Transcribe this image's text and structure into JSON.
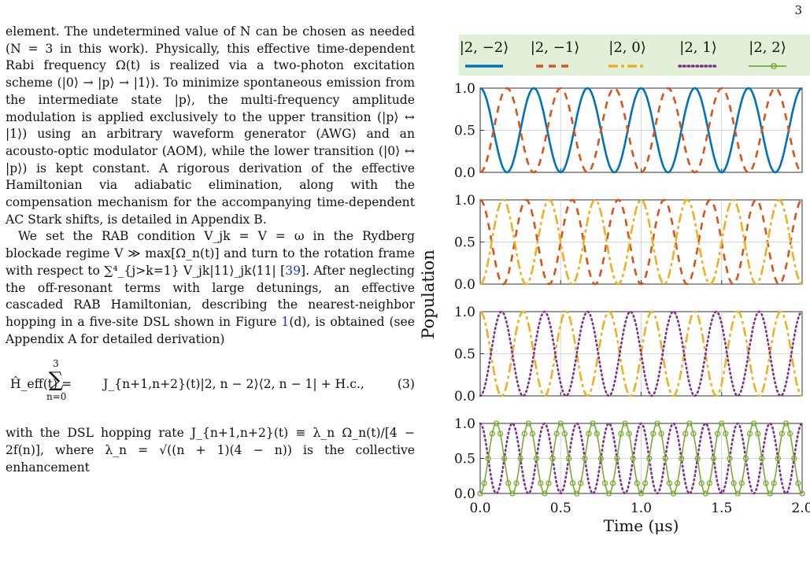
{
  "page_number": "3",
  "body": {
    "para1": "element. The undetermined value of N can be chosen as needed (N = 3 in this work). Physically, this effective time-dependent Rabi frequency Ω(t) is realized via a two-photon excitation scheme (|0⟩ → |p⟩ → |1⟩). To minimize spontaneous emission from the intermediate state |p⟩, the multi-frequency amplitude modulation is applied exclusively to the upper transition (|p⟩ ↔ |1⟩) using an arbitrary waveform generator (AWG) and an acousto-optic modulator (AOM), while the lower transition (|0⟩ ↔ |p⟩) is kept constant. A rigorous derivation of the effective Hamiltonian via adiabatic elimination, along with the compensation mechanism for the accompanying time-dependent AC Stark shifts, is detailed in Appendix B.",
    "para2_a": "We set the RAB condition V_jk = V = ω in the Rydberg blockade regime V ≫ max[Ω_n(t)] and turn to the rotation frame with respect to ∑⁴_{j>k=1} V_jk|11⟩_jk⟨11| [",
    "para2_cite1": "39",
    "para2_b": "]. After neglecting the off-resonant terms with large detunings, an effective cascaded RAB Hamiltonian, describing the nearest-neighbor hopping in a five-site DSL shown in Figure ",
    "para2_cite2": "1",
    "para2_c": "(d), is obtained (see Appendix A for detailed derivation)",
    "equation": {
      "lhs": "Ĥ_eff(t) =",
      "sum_upper": "3",
      "sum_symbol": "∑",
      "sum_lower": "n=0",
      "rhs": "J_{n+1,n+2}(t)|2, n − 2⟩⟨2, n − 1| + H.c.,",
      "number": "(3)"
    },
    "para3": "with the DSL hopping rate J_{n+1,n+2}(t) ≡ λ_n Ω_n(t)/[4 − 2f(n)], where λ_n = √((n + 1)(4 − n)) is the collective enhancement"
  },
  "chart_data": {
    "type": "line",
    "ylabel": "Population",
    "xlabel": "Time (μs)",
    "xlim": [
      0,
      2.0
    ],
    "ylim": [
      0,
      1.0
    ],
    "x_ticks": [
      "0.0",
      "0.5",
      "1.0",
      "1.5",
      "2.0"
    ],
    "y_ticks": [
      "0.0",
      "0.5",
      "1.0"
    ],
    "grid": true,
    "legend_position": "top",
    "legend": [
      {
        "label": "|2, −2⟩",
        "color": "#0072BD",
        "style": "solid"
      },
      {
        "label": "|2, −1⟩",
        "color": "#D95319",
        "style": "dashed"
      },
      {
        "label": "|2, 0⟩",
        "color": "#EDB120",
        "style": "dashdot"
      },
      {
        "label": "|2, 1⟩",
        "color": "#7E2F8E",
        "style": "dotted"
      },
      {
        "label": "|2, 2⟩",
        "color": "#77AC30",
        "style": "solid-circle"
      }
    ],
    "panels": [
      {
        "series": [
          {
            "state": "|2, −2⟩",
            "model": "cos2",
            "cycles": 6.0,
            "start": 1
          },
          {
            "state": "|2, −1⟩",
            "model": "sin2",
            "cycles": 6.0,
            "start": 0
          }
        ]
      },
      {
        "series": [
          {
            "state": "|2, −1⟩",
            "model": "cos2",
            "cycles": 7.0,
            "start": 1
          },
          {
            "state": "|2, 0⟩",
            "model": "sin2",
            "cycles": 7.0,
            "start": 0
          }
        ]
      },
      {
        "series": [
          {
            "state": "|2, 0⟩",
            "model": "cos2",
            "cycles": 7.5,
            "start": 1
          },
          {
            "state": "|2, 1⟩",
            "model": "sin2",
            "cycles": 7.5,
            "start": 0
          }
        ]
      },
      {
        "series": [
          {
            "state": "|2, 1⟩",
            "model": "cos2",
            "cycles": 10.0,
            "start": 1
          },
          {
            "state": "|2, 2⟩",
            "model": "sin2",
            "cycles": 10.0,
            "start": 0
          }
        ]
      }
    ]
  }
}
